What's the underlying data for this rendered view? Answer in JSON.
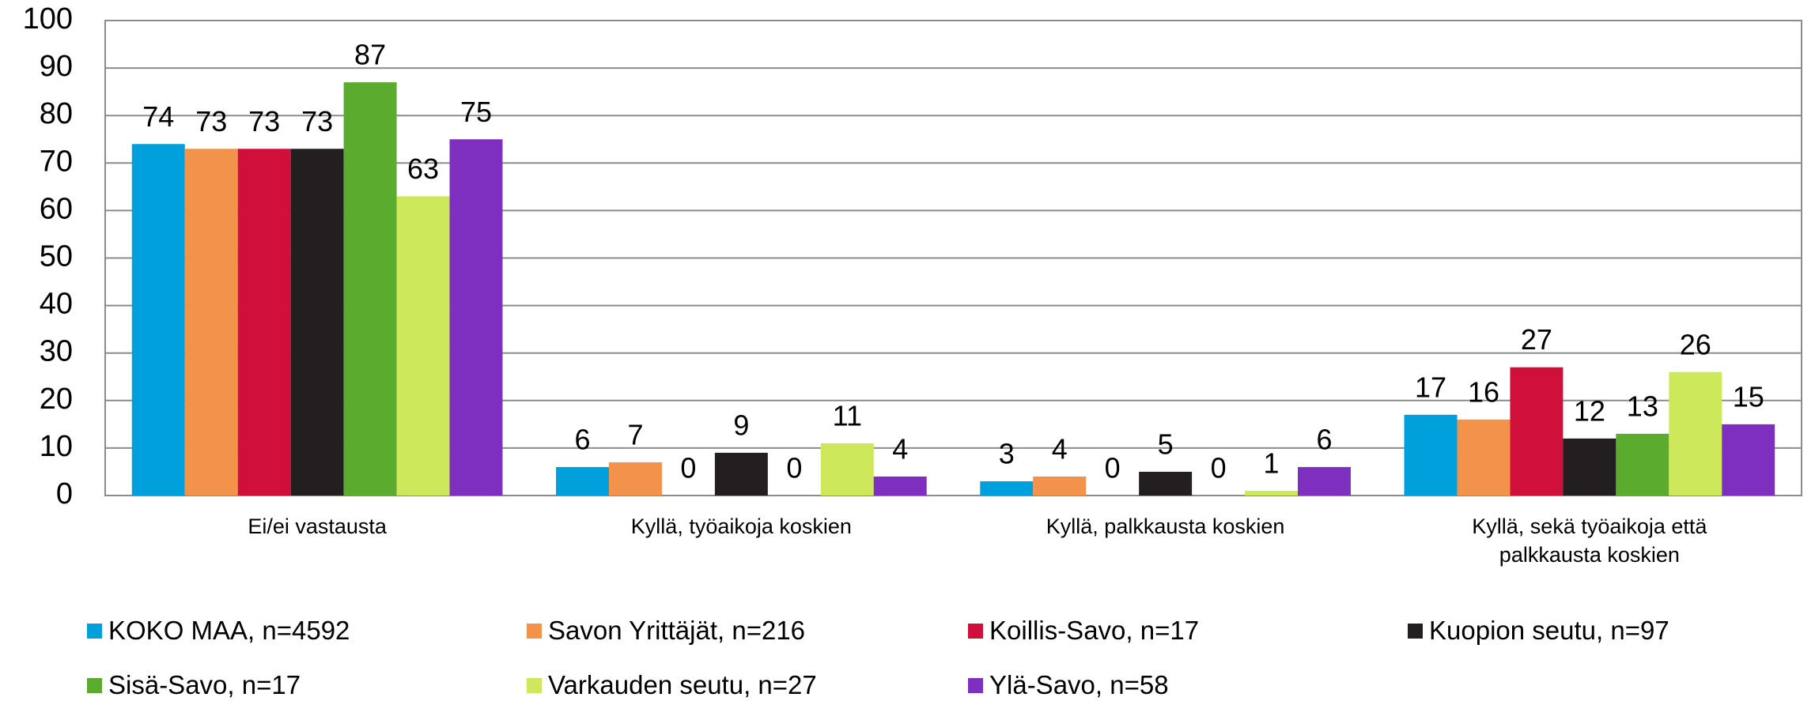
{
  "chart_data": {
    "type": "bar",
    "categories": [
      "Ei/ei vastausta",
      "Kyllä, työaikoja koskien",
      "Kyllä, palkkausta koskien",
      "Kyllä, sekä työaikoja että palkkausta koskien"
    ],
    "series": [
      {
        "name": "KOKO MAA, n=4592",
        "color": "#00a0dc",
        "values": [
          74,
          6,
          3,
          17
        ]
      },
      {
        "name": "Savon Yrittäjät, n=216",
        "color": "#f3924a",
        "values": [
          73,
          7,
          4,
          16
        ]
      },
      {
        "name": "Koillis-Savo, n=17",
        "color": "#d0103a",
        "values": [
          73,
          0,
          0,
          27
        ]
      },
      {
        "name": "Kuopion seutu, n=97",
        "color": "#231f20",
        "values": [
          73,
          9,
          5,
          12
        ]
      },
      {
        "name": "Sisä-Savo, n=17",
        "color": "#5aab2e",
        "values": [
          87,
          0,
          0,
          13
        ]
      },
      {
        "name": "Varkauden seutu, n=27",
        "color": "#cde85a",
        "values": [
          63,
          11,
          1,
          26
        ]
      },
      {
        "name": "Ylä-Savo, n=58",
        "color": "#7f2fc0",
        "values": [
          75,
          4,
          6,
          15
        ]
      }
    ],
    "ylim": [
      0,
      100
    ],
    "yticks": [
      0,
      10,
      20,
      30,
      40,
      50,
      60,
      70,
      80,
      90,
      100
    ],
    "grid": true
  }
}
